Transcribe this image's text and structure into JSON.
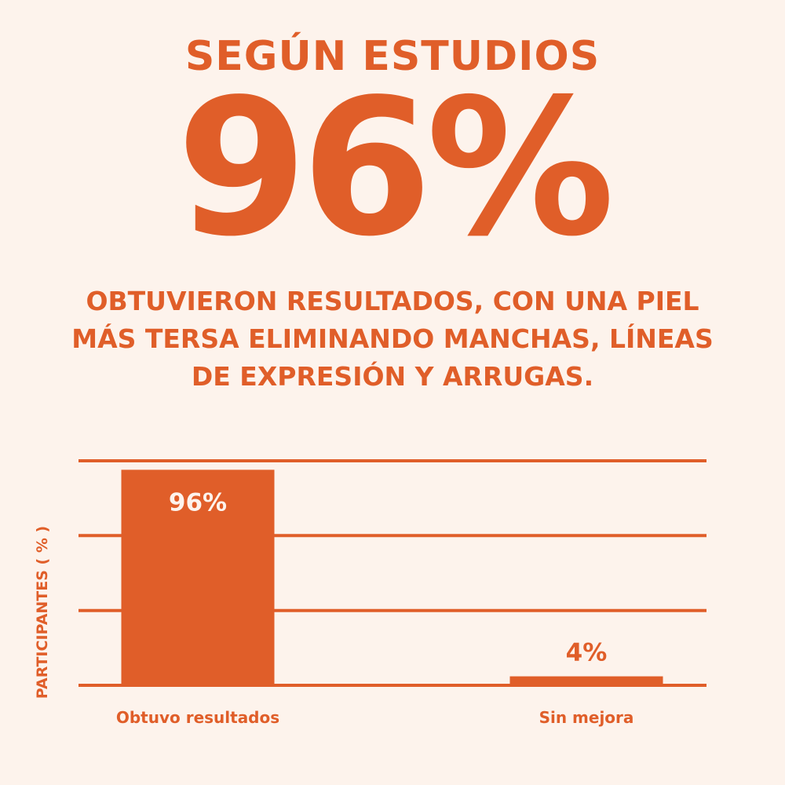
{
  "header": {
    "kicker": "SEGÚN ESTUDIOS",
    "big_stat": "96%",
    "description": "OBTUVIERON RESULTADOS, CON UNA PIEL MÁS TERSA ELIMINANDO MANCHAS, LÍNEAS DE EXPRESIÓN Y ARRUGAS."
  },
  "colors": {
    "accent": "#e05e29",
    "background": "#fdf3ec",
    "bar_label_inside": "#fdf3ec"
  },
  "chart_data": {
    "type": "bar",
    "categories": [
      "Obtuvo resultados",
      "Sin mejora"
    ],
    "values": [
      96,
      4
    ],
    "data_labels": [
      "96%",
      "4%"
    ],
    "title": "",
    "xlabel": "",
    "ylabel": "PARTICIPANTES ( % )",
    "ylim": [
      0,
      100
    ],
    "gridlines": [
      0,
      33.3,
      66.7,
      100
    ],
    "grid": true,
    "legend": "none"
  }
}
